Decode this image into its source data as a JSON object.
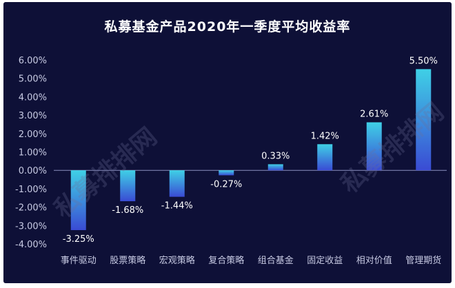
{
  "chart_data": {
    "type": "bar",
    "title": "私募基金产品2020年一季度平均收益率",
    "xlabel": "",
    "ylabel": "",
    "categories": [
      "事件驱动",
      "股票策略",
      "宏观策略",
      "复合策略",
      "组合基金",
      "固定收益",
      "相对价值",
      "管理期货"
    ],
    "values": [
      -3.25,
      -1.68,
      -1.44,
      -0.27,
      0.33,
      1.42,
      2.61,
      5.5
    ],
    "data_labels": [
      "-3.25%",
      "-1.68%",
      "-1.44%",
      "-0.27%",
      "0.33%",
      "1.42%",
      "2.61%",
      "5.50%"
    ],
    "yticks": [
      6,
      5,
      4,
      3,
      2,
      1,
      0,
      -1,
      -2,
      -3,
      -4
    ],
    "ytick_labels": [
      "6.00%",
      "5.00%",
      "4.00%",
      "3.00%",
      "2.00%",
      "1.00%",
      "0.00%",
      "-1.00%",
      "-2.00%",
      "-3.00%",
      "-4.00%"
    ],
    "ylim": [
      -4,
      6
    ],
    "grid": false,
    "legend": "none",
    "colors": {
      "background": "#0e1037",
      "bar_top": "#3fd0e6",
      "bar_bottom": "#3a4bd4",
      "axis_text": "#c8cbe4",
      "title": "#ffffff",
      "watermark": "#6c6f9a"
    }
  },
  "watermark": "私募排排网"
}
